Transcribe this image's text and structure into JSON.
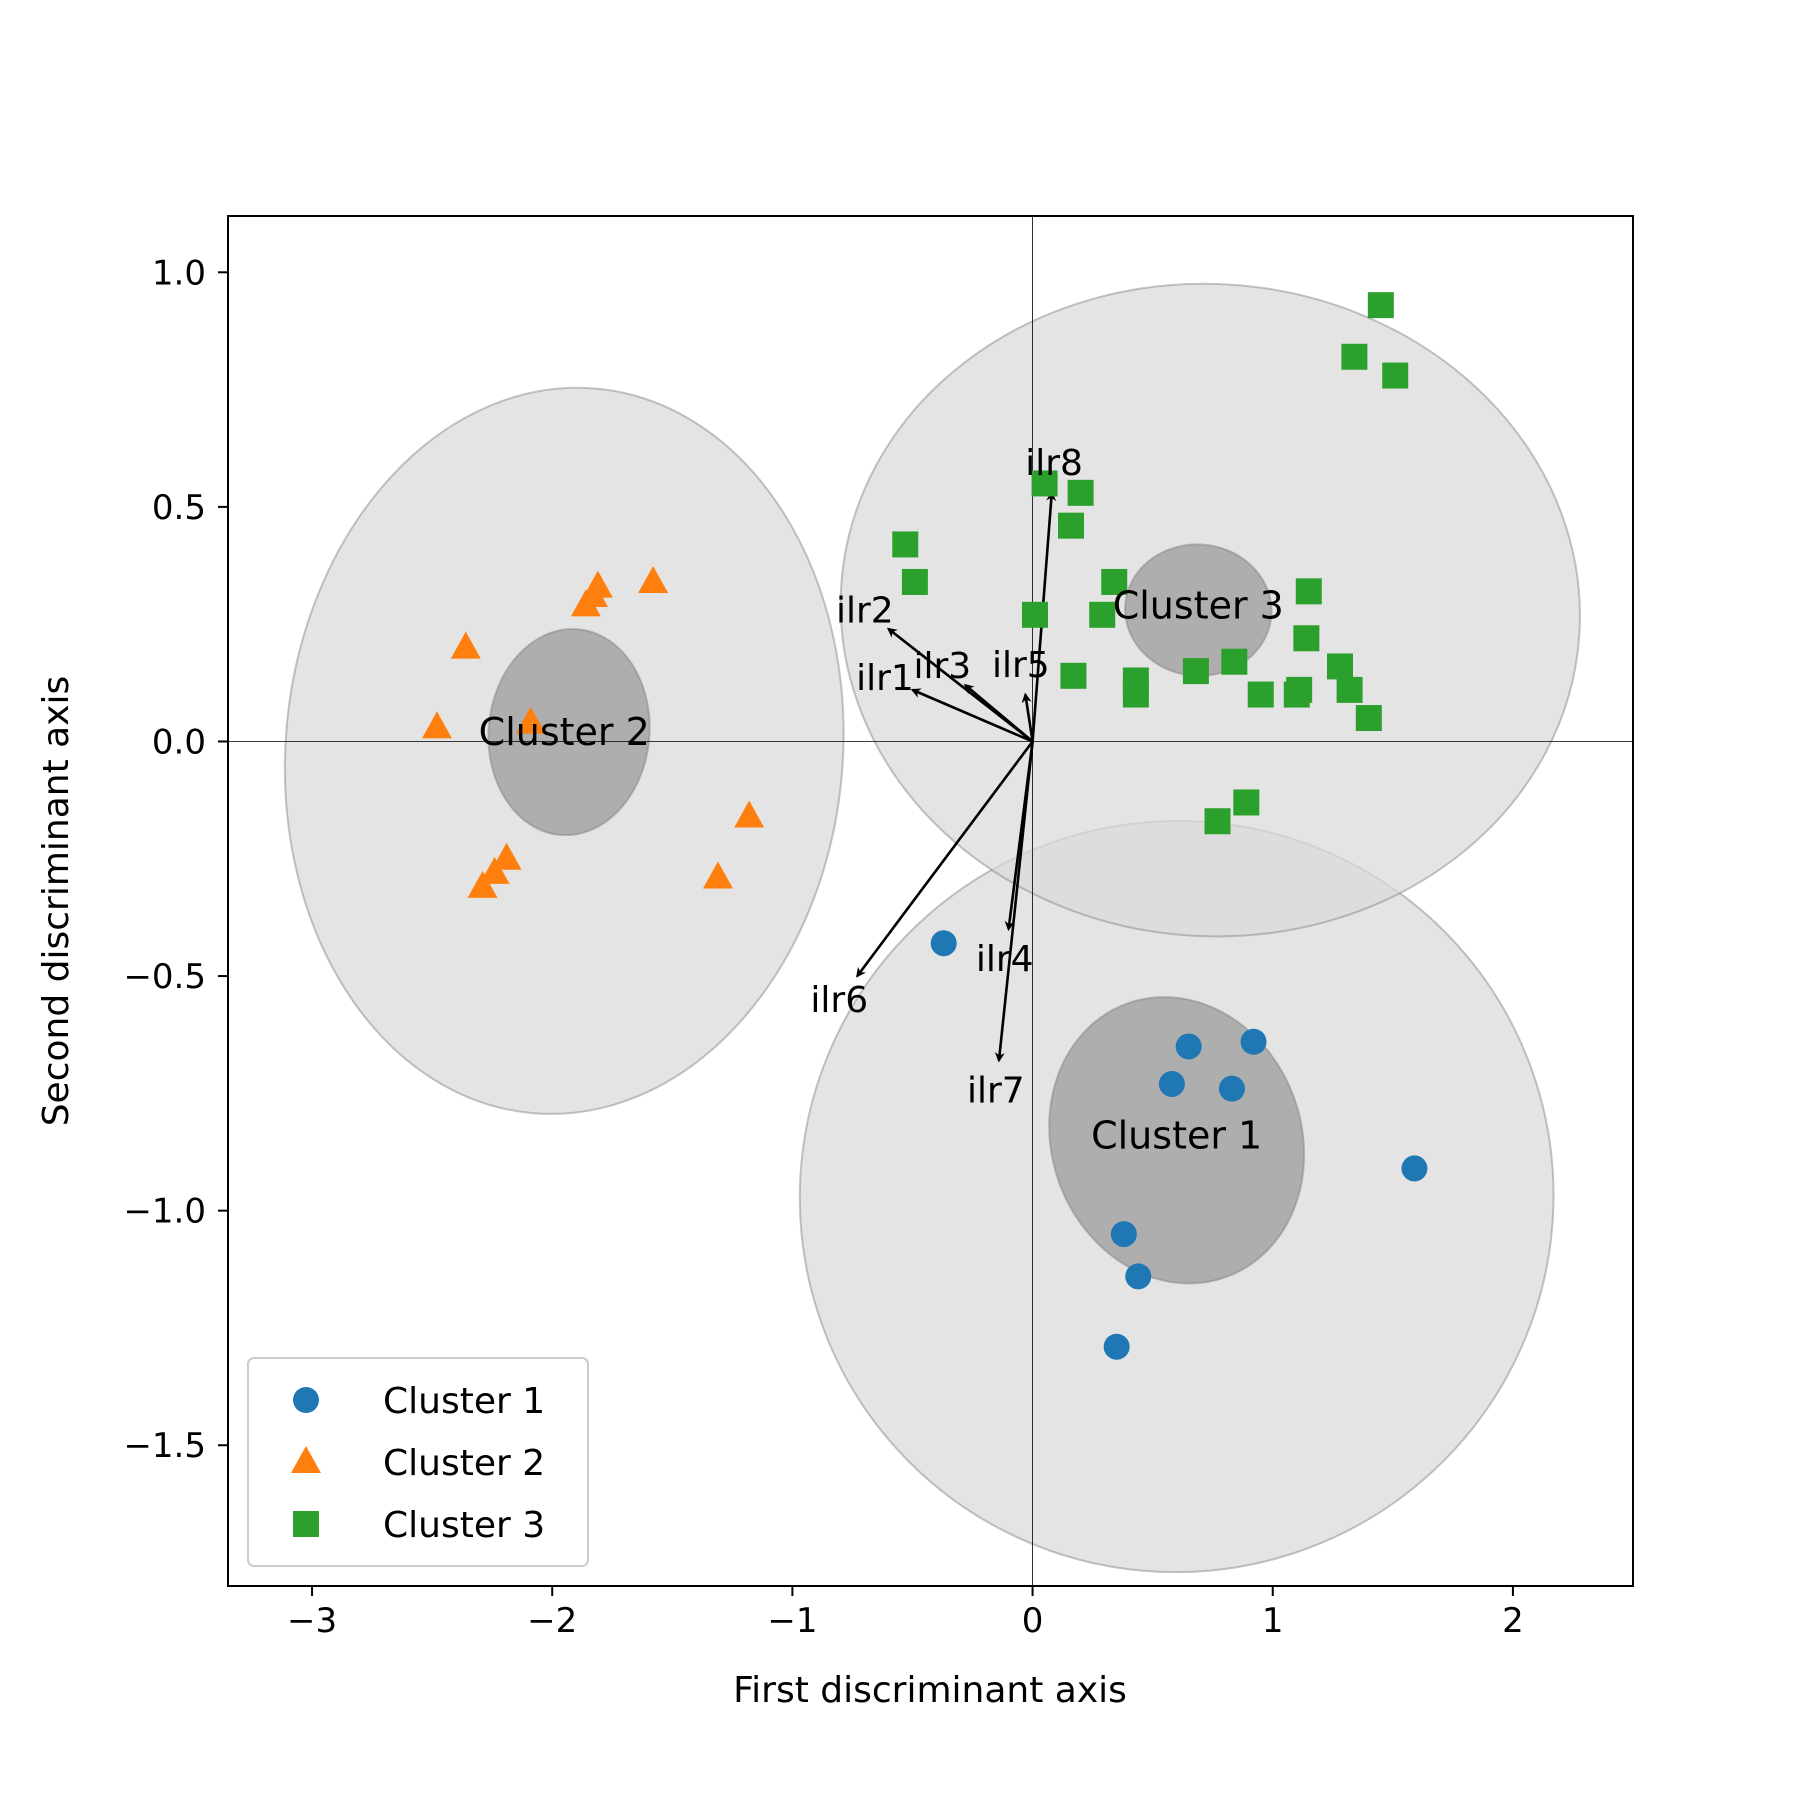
{
  "chart_data": {
    "type": "scatter",
    "title": "",
    "xlabel": "First discriminant axis",
    "ylabel": "Second discriminant axis",
    "xlim": [
      -3.35,
      2.5
    ],
    "ylim": [
      -1.8,
      1.12
    ],
    "xticks": [
      {
        "value": -3,
        "label": "−3"
      },
      {
        "value": -2,
        "label": "−2"
      },
      {
        "value": -1,
        "label": "−1"
      },
      {
        "value": 0,
        "label": "0"
      },
      {
        "value": 1,
        "label": "1"
      },
      {
        "value": 2,
        "label": "2"
      }
    ],
    "yticks": [
      {
        "value": 1.0,
        "label": "1.0"
      },
      {
        "value": 0.5,
        "label": "0.5"
      },
      {
        "value": 0.0,
        "label": "0.0"
      },
      {
        "value": -0.5,
        "label": "−0.5"
      },
      {
        "value": -1.0,
        "label": "−1.0"
      },
      {
        "value": -1.5,
        "label": "−1.5"
      }
    ],
    "grid": false,
    "reference_lines": {
      "x": 0,
      "y": 0
    },
    "legend": {
      "position": "bottom-left"
    },
    "series": [
      {
        "name": "Cluster 1",
        "marker": "circle",
        "color": "#1f77b4",
        "points": [
          [
            -0.37,
            -0.43
          ],
          [
            0.65,
            -0.65
          ],
          [
            0.92,
            -0.64
          ],
          [
            0.58,
            -0.73
          ],
          [
            0.83,
            -0.74
          ],
          [
            1.59,
            -0.91
          ],
          [
            0.38,
            -1.05
          ],
          [
            0.44,
            -1.14
          ],
          [
            0.35,
            -1.29
          ]
        ]
      },
      {
        "name": "Cluster 2",
        "marker": "triangle",
        "color": "#ff7f0e",
        "points": [
          [
            -2.48,
            0.03
          ],
          [
            -2.36,
            0.2
          ],
          [
            -2.09,
            0.04
          ],
          [
            -1.86,
            0.29
          ],
          [
            -1.83,
            0.31
          ],
          [
            -1.81,
            0.33
          ],
          [
            -1.58,
            0.34
          ],
          [
            -1.18,
            -0.16
          ],
          [
            -1.31,
            -0.29
          ],
          [
            -2.19,
            -0.25
          ],
          [
            -2.24,
            -0.28
          ],
          [
            -2.29,
            -0.31
          ]
        ]
      },
      {
        "name": "Cluster 3",
        "marker": "square",
        "color": "#2ca02c",
        "points": [
          [
            1.45,
            0.93
          ],
          [
            1.34,
            0.82
          ],
          [
            1.51,
            0.78
          ],
          [
            0.05,
            0.55
          ],
          [
            0.2,
            0.53
          ],
          [
            0.16,
            0.46
          ],
          [
            -0.53,
            0.42
          ],
          [
            -0.49,
            0.34
          ],
          [
            0.34,
            0.34
          ],
          [
            0.29,
            0.27
          ],
          [
            0.01,
            0.27
          ],
          [
            1.15,
            0.32
          ],
          [
            1.14,
            0.22
          ],
          [
            0.17,
            0.14
          ],
          [
            0.43,
            0.13
          ],
          [
            0.43,
            0.1
          ],
          [
            0.68,
            0.15
          ],
          [
            0.84,
            0.17
          ],
          [
            0.95,
            0.1
          ],
          [
            1.1,
            0.1
          ],
          [
            1.11,
            0.11
          ],
          [
            1.28,
            0.16
          ],
          [
            1.32,
            0.11
          ],
          [
            1.4,
            0.05
          ],
          [
            0.77,
            -0.17
          ],
          [
            0.89,
            -0.13
          ]
        ]
      }
    ],
    "arrows": [
      {
        "label": "ilr1",
        "x": -0.5,
        "y": 0.11
      },
      {
        "label": "ilr2",
        "x": -0.6,
        "y": 0.24
      },
      {
        "label": "ilr3",
        "x": -0.28,
        "y": 0.12
      },
      {
        "label": "ilr4",
        "x": -0.1,
        "y": -0.4
      },
      {
        "label": "ilr5",
        "x": -0.03,
        "y": 0.1
      },
      {
        "label": "ilr6",
        "x": -0.73,
        "y": -0.5
      },
      {
        "label": "ilr7",
        "x": -0.14,
        "y": -0.68
      },
      {
        "label": "ilr8",
        "x": 0.08,
        "y": 0.53
      }
    ],
    "regions": [
      {
        "cluster": "Cluster 1",
        "label": "Cluster 1",
        "label_at": [
          0.6,
          -0.84
        ],
        "outer": {
          "cx": 0.6,
          "cy": -0.97,
          "rx": 1.57,
          "ry": 0.8,
          "angle": -20
        },
        "inner": {
          "cx": 0.6,
          "cy": -0.85,
          "rx": 0.52,
          "ry": 0.31,
          "angle": -20
        }
      },
      {
        "cluster": "Cluster 2",
        "label": "Cluster 2",
        "label_at": [
          -1.95,
          0.02
        ],
        "outer": {
          "cx": -1.95,
          "cy": -0.02,
          "rx": 1.16,
          "ry": 0.775,
          "angle": 5
        },
        "inner": {
          "cx": -1.93,
          "cy": 0.02,
          "rx": 0.335,
          "ry": 0.22,
          "angle": 5
        }
      },
      {
        "cluster": "Cluster 3",
        "label": "Cluster 3",
        "label_at": [
          0.69,
          0.29
        ],
        "outer": {
          "cx": 0.74,
          "cy": 0.28,
          "rx": 1.54,
          "ry": 0.695,
          "angle": 4
        },
        "inner": {
          "cx": 0.69,
          "cy": 0.28,
          "rx": 0.305,
          "ry": 0.14,
          "angle": 4
        }
      }
    ]
  }
}
